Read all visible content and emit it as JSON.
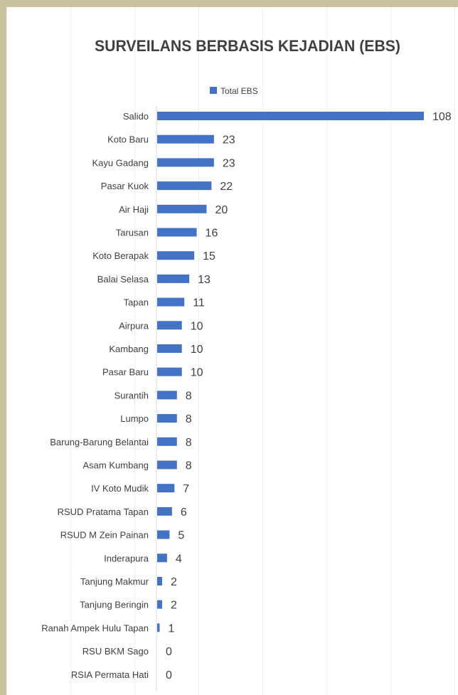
{
  "chart_data": {
    "type": "bar",
    "orientation": "horizontal",
    "title": "SURVEILANS BERBASIS KEJADIAN (EBS)",
    "legend": {
      "position": "top",
      "entries": [
        "Total EBS"
      ]
    },
    "categories": [
      "Salido",
      "Koto Baru",
      "Kayu Gadang",
      "Pasar Kuok",
      "Air Haji",
      "Tarusan",
      "Koto Berapak",
      "Balai Selasa",
      "Tapan",
      "Airpura",
      "Kambang",
      "Pasar Baru",
      "Surantih",
      "Lumpo",
      "Barung-Barung Belantai",
      "Asam Kumbang",
      "IV Koto Mudik",
      "RSUD Pratama Tapan",
      "RSUD M Zein Painan",
      "Inderapura",
      "Tanjung Makmur",
      "Tanjung Beringin",
      "Ranah Ampek Hulu Tapan",
      "RSU BKM Sago",
      "RSIA Permata Hati"
    ],
    "series": [
      {
        "name": "Total EBS",
        "color": "#4472c4",
        "values": [
          108,
          23,
          23,
          22,
          20,
          16,
          15,
          13,
          11,
          10,
          10,
          10,
          8,
          8,
          8,
          8,
          7,
          6,
          5,
          4,
          2,
          2,
          1,
          0,
          0
        ]
      }
    ],
    "xlim": [
      0,
      108
    ],
    "data_labels": true,
    "grid": false
  }
}
